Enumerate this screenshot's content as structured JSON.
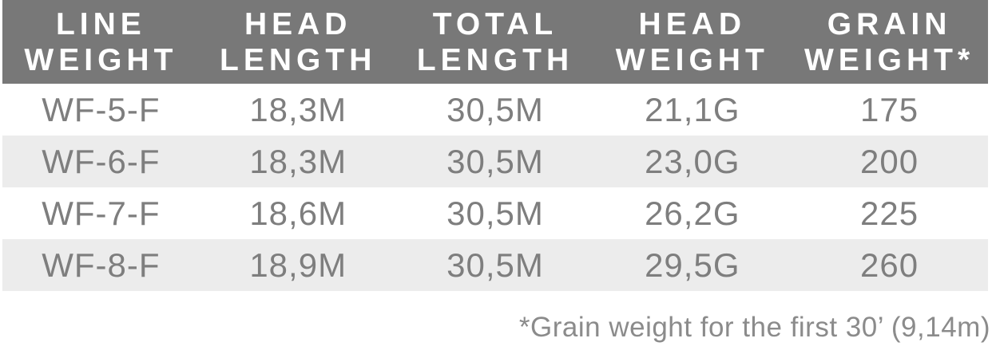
{
  "table": {
    "headers": [
      {
        "line1": "LINE",
        "line2": "WEIGHT"
      },
      {
        "line1": "HEAD",
        "line2": "LENGTH"
      },
      {
        "line1": "TOTAL",
        "line2": "LENGTH"
      },
      {
        "line1": "HEAD",
        "line2": "WEIGHT"
      },
      {
        "line1": "GRAIN",
        "line2": "WEIGHT*"
      }
    ],
    "rows": [
      [
        "WF-5-F",
        "18,3M",
        "30,5M",
        "21,1G",
        "175"
      ],
      [
        "WF-6-F",
        "18,3M",
        "30,5M",
        "23,0G",
        "200"
      ],
      [
        "WF-7-F",
        "18,6M",
        "30,5M",
        "26,2G",
        "225"
      ],
      [
        "WF-8-F",
        "18,9M",
        "30,5M",
        "29,5G",
        "260"
      ]
    ],
    "footnote": "*Grain weight for the first 30’ (9,14m)"
  },
  "colors": {
    "header_bg": "#787878",
    "header_text": "#ffffff",
    "row_stripe": "#ececec",
    "row_plain": "#ffffff",
    "data_text": "#7e7e7e",
    "footnote_text": "#8b8b8b",
    "page_bg": "#ffffff"
  }
}
